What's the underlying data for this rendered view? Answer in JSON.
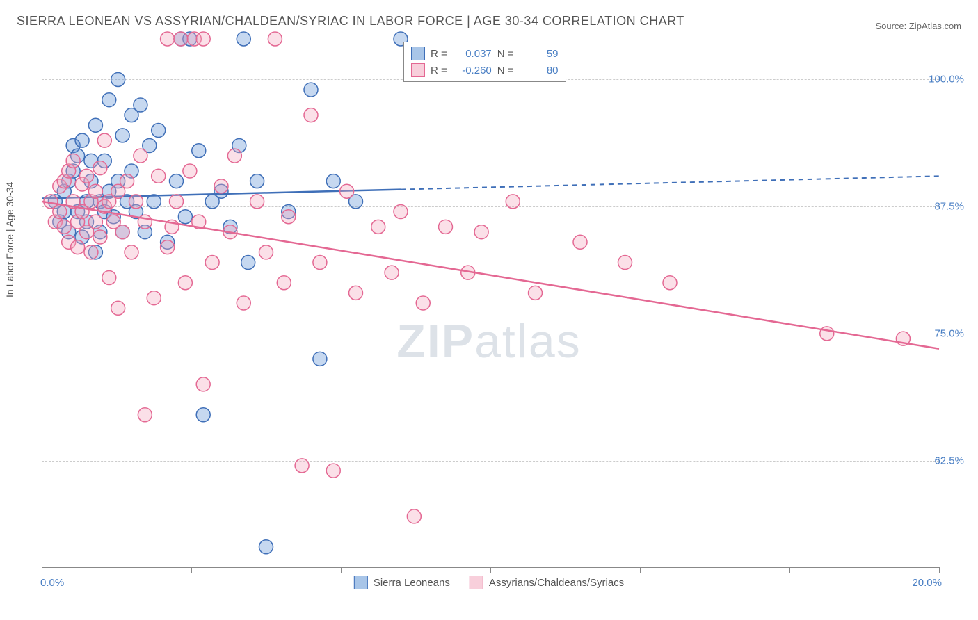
{
  "title": "SIERRA LEONEAN VS ASSYRIAN/CHALDEAN/SYRIAC IN LABOR FORCE | AGE 30-34 CORRELATION CHART",
  "source": "Source: ZipAtlas.com",
  "y_axis_label": "In Labor Force | Age 30-34",
  "watermark_bold": "ZIP",
  "watermark_rest": "atlas",
  "chart": {
    "type": "scatter",
    "xlim": [
      0,
      20
    ],
    "ylim": [
      52,
      104
    ],
    "x_ticks": [
      0,
      3.33,
      6.67,
      10,
      13.33,
      16.67,
      20
    ],
    "x_tick_labels": {
      "0": "0.0%",
      "20": "20.0%"
    },
    "y_grid": [
      62.5,
      75.0,
      87.5,
      100.0
    ],
    "y_tick_labels": [
      "62.5%",
      "75.0%",
      "87.5%",
      "100.0%"
    ],
    "background_color": "#ffffff",
    "grid_color": "#cccccc",
    "axis_color": "#888888",
    "point_radius": 10,
    "point_fill_opacity": 0.35,
    "point_stroke_width": 1.5,
    "series": [
      {
        "name": "Sierra Leoneans",
        "color": "#5d8fd4",
        "stroke": "#3f6fb8",
        "R": "0.037",
        "N": "59",
        "trend": {
          "y_at_x0": 88.3,
          "y_at_xmax": 90.5,
          "solid_until_x": 8.0
        },
        "points": [
          [
            0.3,
            88
          ],
          [
            0.4,
            86
          ],
          [
            0.5,
            89
          ],
          [
            0.5,
            87
          ],
          [
            0.6,
            90
          ],
          [
            0.6,
            85
          ],
          [
            0.7,
            91
          ],
          [
            0.7,
            93.5
          ],
          [
            0.8,
            87
          ],
          [
            0.8,
            92.5
          ],
          [
            0.9,
            84.5
          ],
          [
            0.9,
            94
          ],
          [
            1.0,
            88
          ],
          [
            1.0,
            86
          ],
          [
            1.1,
            90
          ],
          [
            1.1,
            92
          ],
          [
            1.2,
            83
          ],
          [
            1.2,
            95.5
          ],
          [
            1.3,
            88
          ],
          [
            1.3,
            85
          ],
          [
            1.4,
            92
          ],
          [
            1.4,
            87
          ],
          [
            1.5,
            89
          ],
          [
            1.5,
            98
          ],
          [
            1.6,
            86.5
          ],
          [
            1.7,
            90
          ],
          [
            1.7,
            100
          ],
          [
            1.8,
            85
          ],
          [
            1.8,
            94.5
          ],
          [
            1.9,
            88
          ],
          [
            2.0,
            91
          ],
          [
            2.0,
            96.5
          ],
          [
            2.1,
            87
          ],
          [
            2.2,
            97.5
          ],
          [
            2.3,
            85
          ],
          [
            2.4,
            93.5
          ],
          [
            2.5,
            88
          ],
          [
            2.6,
            95
          ],
          [
            2.8,
            84
          ],
          [
            3.0,
            90
          ],
          [
            3.1,
            104
          ],
          [
            3.2,
            86.5
          ],
          [
            3.3,
            104
          ],
          [
            3.5,
            93
          ],
          [
            3.6,
            67
          ],
          [
            3.8,
            88
          ],
          [
            4.0,
            89
          ],
          [
            4.2,
            85.5
          ],
          [
            4.4,
            93.5
          ],
          [
            4.5,
            104
          ],
          [
            4.6,
            82
          ],
          [
            4.8,
            90
          ],
          [
            5.0,
            54
          ],
          [
            5.5,
            87
          ],
          [
            6.0,
            99
          ],
          [
            6.2,
            72.5
          ],
          [
            6.5,
            90
          ],
          [
            7.0,
            88
          ],
          [
            8.0,
            104
          ]
        ]
      },
      {
        "name": "Assyrians/Chaldeans/Syriacs",
        "color": "#f4a5bc",
        "stroke": "#e46893",
        "R": "-0.260",
        "N": "80",
        "trend": {
          "y_at_x0": 88.0,
          "y_at_xmax": 73.5,
          "solid_until_x": 20
        },
        "points": [
          [
            0.2,
            88
          ],
          [
            0.3,
            86
          ],
          [
            0.4,
            89.5
          ],
          [
            0.4,
            87
          ],
          [
            0.5,
            90
          ],
          [
            0.5,
            85.5
          ],
          [
            0.6,
            91
          ],
          [
            0.6,
            84
          ],
          [
            0.7,
            88
          ],
          [
            0.7,
            92
          ],
          [
            0.8,
            86
          ],
          [
            0.8,
            83.5
          ],
          [
            0.9,
            89.7
          ],
          [
            0.9,
            87
          ],
          [
            1.0,
            90.5
          ],
          [
            1.0,
            85
          ],
          [
            1.1,
            88
          ],
          [
            1.1,
            83
          ],
          [
            1.2,
            86
          ],
          [
            1.2,
            89
          ],
          [
            1.3,
            91.3
          ],
          [
            1.3,
            84.5
          ],
          [
            1.4,
            87.5
          ],
          [
            1.4,
            94
          ],
          [
            1.5,
            80.5
          ],
          [
            1.5,
            88
          ],
          [
            1.6,
            86
          ],
          [
            1.7,
            77.5
          ],
          [
            1.7,
            89
          ],
          [
            1.8,
            85
          ],
          [
            1.9,
            90
          ],
          [
            2.0,
            83
          ],
          [
            2.1,
            88
          ],
          [
            2.2,
            92.5
          ],
          [
            2.3,
            67
          ],
          [
            2.3,
            86
          ],
          [
            2.5,
            78.5
          ],
          [
            2.6,
            90.5
          ],
          [
            2.8,
            83.5
          ],
          [
            2.8,
            104
          ],
          [
            2.9,
            85.5
          ],
          [
            3.0,
            88
          ],
          [
            3.1,
            104
          ],
          [
            3.2,
            80
          ],
          [
            3.3,
            91
          ],
          [
            3.4,
            104
          ],
          [
            3.5,
            86
          ],
          [
            3.6,
            70
          ],
          [
            3.6,
            104
          ],
          [
            3.8,
            82
          ],
          [
            4.0,
            89.5
          ],
          [
            4.2,
            85
          ],
          [
            4.3,
            92.5
          ],
          [
            4.5,
            78
          ],
          [
            4.8,
            88
          ],
          [
            5.0,
            83
          ],
          [
            5.2,
            104
          ],
          [
            5.4,
            80
          ],
          [
            5.5,
            86.5
          ],
          [
            5.8,
            62
          ],
          [
            6.0,
            96.5
          ],
          [
            6.2,
            82
          ],
          [
            6.5,
            61.5
          ],
          [
            6.8,
            89
          ],
          [
            7.0,
            79
          ],
          [
            7.5,
            85.5
          ],
          [
            7.8,
            81
          ],
          [
            8.0,
            87
          ],
          [
            8.3,
            57
          ],
          [
            8.5,
            78
          ],
          [
            9.0,
            85.5
          ],
          [
            9.5,
            81
          ],
          [
            9.8,
            85
          ],
          [
            10.5,
            88
          ],
          [
            11.0,
            79
          ],
          [
            12.0,
            84
          ],
          [
            13.0,
            82
          ],
          [
            14.0,
            80
          ],
          [
            17.5,
            75
          ],
          [
            19.2,
            74.5
          ]
        ]
      }
    ]
  },
  "legend_bottom": [
    {
      "label": "Sierra Leoneans",
      "fill": "#a8c5e8",
      "stroke": "#3f6fb8"
    },
    {
      "label": "Assyrians/Chaldeans/Syriacs",
      "fill": "#f8cfdb",
      "stroke": "#e46893"
    }
  ],
  "legend_top": {
    "R_label": "R =",
    "N_label": "N ="
  }
}
